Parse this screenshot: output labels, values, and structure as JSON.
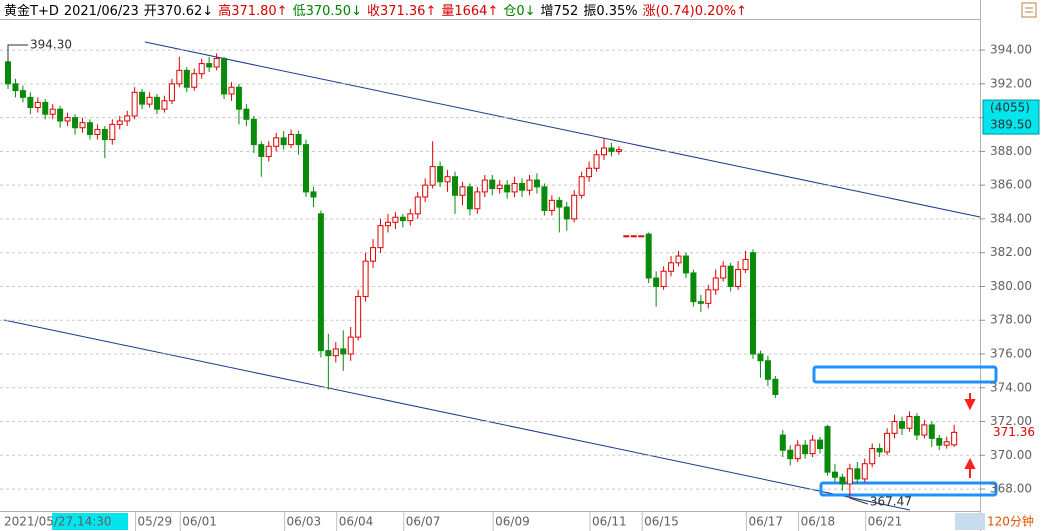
{
  "chart_data": {
    "type": "candlestick",
    "header": [
      {
        "text": "黄金T+D",
        "color": "#000000"
      },
      {
        "text": "2021/06/23",
        "color": "#000000"
      },
      {
        "text": "开370.62↓",
        "color": "#000000"
      },
      {
        "text": "高371.80↑",
        "color": "#d40000"
      },
      {
        "text": "低370.50↓",
        "color": "#008000"
      },
      {
        "text": "收371.36↑",
        "color": "#d40000"
      },
      {
        "text": "量1664↑",
        "color": "#d40000"
      },
      {
        "text": "仓0↓",
        "color": "#008000"
      },
      {
        "text": "增752",
        "color": "#000000"
      },
      {
        "text": "振0.35%",
        "color": "#000000"
      },
      {
        "text": "涨(0.74)0.20%↑",
        "color": "#d40000"
      }
    ],
    "cursor_date": "2021/05/27,14:30",
    "period": "120分钟",
    "cursor": {
      "volume_label": "(4055)",
      "price": {
        "value": 389.5,
        "label": "389.50"
      }
    },
    "last_price": {
      "value": 371.36,
      "label": "371.36"
    },
    "annotations": [
      {
        "value": 394.3,
        "label": "394.30"
      },
      {
        "value": 367.47,
        "label": "367.47"
      }
    ],
    "up_color": "#e00000",
    "down_color": "#0a8a0a",
    "grid": true,
    "ylim": [
      366.76,
      395.9
    ],
    "yticks": [
      {
        "value": 368,
        "label": "368.00"
      },
      {
        "value": 370,
        "label": "370.00"
      },
      {
        "value": 372,
        "label": "372.00"
      },
      {
        "value": 374,
        "label": "374.00"
      },
      {
        "value": 376,
        "label": "376.00"
      },
      {
        "value": 378,
        "label": "378.00"
      },
      {
        "value": 380,
        "label": "380.00"
      },
      {
        "value": 382,
        "label": "382.00"
      },
      {
        "value": 384,
        "label": "384.00"
      },
      {
        "value": 386,
        "label": "386.00"
      },
      {
        "value": 388,
        "label": "388.00"
      },
      {
        "value": 390,
        "label": "390.00"
      },
      {
        "value": 392,
        "label": "392.00"
      },
      {
        "value": 394,
        "label": "394.00"
      }
    ],
    "categories": [
      null,
      null,
      null,
      null,
      null,
      null,
      null,
      null,
      null,
      null,
      null,
      null,
      null,
      null,
      null,
      null,
      null,
      null,
      null,
      "05/29",
      null,
      null,
      null,
      null,
      null,
      "06/01",
      null,
      null,
      null,
      null,
      null,
      null,
      null,
      null,
      null,
      null,
      null,
      null,
      null,
      "06/03",
      null,
      null,
      null,
      null,
      null,
      null,
      "06/04",
      null,
      null,
      null,
      null,
      null,
      null,
      null,
      null,
      "06/07",
      null,
      null,
      null,
      null,
      null,
      null,
      null,
      null,
      null,
      null,
      null,
      "06/09",
      null,
      null,
      null,
      null,
      null,
      null,
      null,
      null,
      null,
      null,
      null,
      null,
      "06/11",
      null,
      null,
      null,
      null,
      null,
      null,
      "06/15",
      null,
      null,
      null,
      null,
      null,
      null,
      null,
      null,
      null,
      null,
      null,
      null,
      null,
      "06/17",
      null,
      null,
      null,
      null,
      null,
      null,
      "06/18",
      null,
      null,
      null,
      null,
      null,
      null,
      null,
      null,
      "06/21",
      null,
      null,
      null,
      null,
      null,
      null,
      null,
      null,
      null,
      null
    ],
    "open": [
      393.3,
      392.0,
      391.6,
      391.2,
      390.6,
      390.9,
      390.2,
      390.5,
      389.8,
      390.0,
      389.4,
      389.7,
      389.0,
      389.3,
      388.7,
      389.6,
      389.8,
      390.1,
      391.5,
      390.8,
      391.2,
      390.5,
      391.0,
      392.0,
      392.8,
      391.8,
      392.6,
      393.2,
      393.0,
      393.5,
      391.4,
      391.8,
      390.5,
      389.9,
      388.4,
      387.7,
      388.3,
      388.8,
      388.4,
      389.0,
      388.4,
      385.6,
      384.3,
      376.2,
      375.9,
      376.3,
      376.0,
      377.0,
      379.4,
      381.5,
      382.3,
      383.6,
      383.8,
      384.1,
      383.9,
      384.3,
      385.3,
      386.0,
      387.1,
      386.2,
      386.5,
      385.4,
      385.9,
      384.6,
      385.6,
      386.3,
      385.8,
      386.0,
      385.6,
      386.1,
      385.7,
      386.3,
      385.9,
      384.5,
      385.1,
      384.7,
      384.0,
      385.4,
      386.5,
      387.0,
      387.8,
      388.2,
      388.0,
      383.0,
      383.0,
      383.0,
      383.1,
      380.5,
      380.0,
      380.9,
      381.4,
      381.8,
      380.8,
      379.1,
      379.0,
      379.8,
      380.5,
      381.2,
      380.0,
      381.0,
      382.0,
      376.0,
      375.6,
      374.5,
      371.2,
      370.3,
      369.8,
      370.6,
      370.1,
      370.9,
      371.7,
      369.0,
      368.7,
      368.3,
      369.2,
      368.6,
      369.5,
      370.4,
      370.2,
      371.3,
      372.0,
      371.6,
      372.3,
      371.2,
      371.8,
      371.0,
      370.6,
      370.62
    ],
    "high": [
      394.3,
      392.3,
      391.9,
      391.5,
      391.2,
      391.1,
      390.8,
      390.7,
      390.3,
      390.2,
      390.0,
      389.9,
      389.6,
      389.5,
      389.9,
      390.1,
      390.4,
      391.8,
      391.7,
      391.5,
      391.4,
      391.3,
      392.3,
      393.6,
      393.0,
      392.9,
      393.5,
      393.6,
      393.8,
      393.6,
      392.1,
      392.0,
      390.8,
      390.1,
      388.6,
      388.6,
      389.1,
      389.2,
      389.3,
      389.2,
      388.7,
      385.9,
      384.5,
      377.2,
      376.7,
      377.4,
      377.6,
      379.8,
      382.0,
      382.8,
      384.0,
      384.3,
      384.4,
      384.3,
      384.6,
      385.6,
      386.4,
      388.6,
      387.4,
      386.9,
      386.8,
      386.2,
      386.1,
      385.9,
      386.6,
      386.6,
      386.3,
      386.3,
      386.5,
      386.4,
      386.6,
      386.7,
      386.1,
      385.4,
      385.3,
      385.0,
      385.7,
      386.8,
      387.4,
      388.1,
      388.8,
      388.5,
      388.3,
      383.0,
      383.0,
      383.0,
      383.2,
      380.9,
      381.2,
      381.8,
      382.1,
      382.0,
      381.0,
      379.5,
      380.1,
      381.0,
      381.5,
      381.4,
      381.5,
      382.1,
      382.2,
      376.2,
      375.9,
      374.7,
      371.5,
      370.6,
      370.9,
      370.9,
      371.2,
      371.1,
      371.8,
      369.5,
      368.9,
      369.5,
      369.6,
      369.8,
      370.7,
      370.7,
      371.6,
      372.4,
      372.3,
      372.6,
      372.5,
      372.1,
      372.0,
      371.2,
      371.1,
      371.8
    ],
    "low": [
      391.7,
      391.2,
      390.9,
      390.2,
      390.3,
      389.9,
      389.9,
      389.4,
      389.5,
      389.0,
      389.1,
      388.7,
      388.7,
      387.6,
      388.4,
      389.3,
      389.5,
      389.9,
      390.5,
      390.6,
      390.2,
      390.3,
      390.8,
      391.8,
      391.5,
      391.6,
      392.3,
      392.7,
      392.8,
      391.1,
      391.0,
      389.6,
      389.5,
      387.9,
      386.5,
      387.4,
      388.0,
      388.1,
      388.2,
      387.8,
      385.3,
      384.7,
      375.8,
      373.9,
      375.5,
      375.0,
      375.6,
      376.8,
      379.1,
      381.1,
      382.0,
      383.2,
      383.4,
      383.5,
      383.6,
      384.0,
      385.0,
      385.8,
      385.9,
      385.6,
      384.3,
      384.8,
      384.2,
      384.3,
      385.3,
      385.4,
      385.5,
      385.2,
      385.3,
      385.3,
      385.4,
      385.5,
      384.2,
      384.2,
      383.2,
      383.3,
      383.8,
      385.2,
      386.2,
      386.8,
      387.5,
      387.7,
      387.8,
      383.0,
      383.0,
      383.0,
      380.2,
      378.8,
      379.8,
      380.6,
      381.2,
      380.5,
      378.8,
      378.5,
      378.7,
      379.5,
      380.3,
      379.7,
      379.8,
      380.8,
      375.7,
      374.6,
      374.1,
      373.4,
      369.9,
      369.4,
      369.6,
      369.8,
      369.9,
      370.1,
      368.8,
      368.4,
      367.9,
      367.47,
      368.3,
      368.4,
      369.3,
      369.9,
      370.0,
      371.0,
      371.2,
      371.4,
      370.9,
      371.0,
      370.5,
      370.3,
      370.4,
      370.5
    ],
    "close": [
      392.0,
      391.6,
      391.2,
      390.6,
      390.9,
      390.2,
      390.5,
      389.8,
      390.0,
      389.4,
      389.7,
      389.0,
      389.3,
      388.7,
      389.6,
      389.8,
      390.1,
      391.5,
      390.8,
      391.2,
      390.5,
      391.0,
      392.0,
      392.8,
      391.8,
      392.6,
      393.2,
      393.0,
      393.5,
      391.4,
      391.8,
      390.5,
      389.9,
      388.4,
      387.7,
      388.3,
      388.8,
      388.4,
      389.0,
      388.4,
      385.6,
      385.3,
      376.2,
      375.9,
      376.3,
      376.0,
      377.0,
      379.4,
      381.5,
      382.3,
      383.6,
      383.8,
      384.1,
      383.9,
      384.3,
      385.3,
      386.0,
      387.1,
      386.2,
      386.5,
      385.4,
      385.9,
      384.6,
      385.6,
      386.3,
      385.8,
      386.0,
      385.6,
      386.1,
      385.7,
      386.3,
      385.9,
      384.5,
      385.1,
      384.7,
      384.0,
      385.4,
      386.5,
      387.0,
      387.8,
      388.2,
      388.0,
      388.1,
      383.0,
      383.0,
      383.0,
      380.5,
      380.0,
      380.9,
      381.4,
      381.8,
      380.8,
      379.1,
      379.0,
      379.8,
      380.5,
      381.2,
      380.0,
      381.0,
      381.6,
      376.0,
      375.6,
      374.5,
      373.6,
      370.3,
      369.8,
      370.6,
      370.1,
      370.9,
      370.4,
      369.0,
      368.7,
      368.3,
      369.2,
      368.6,
      369.5,
      370.4,
      370.2,
      371.3,
      372.0,
      371.6,
      372.3,
      371.2,
      371.8,
      371.0,
      370.6,
      370.8,
      371.36
    ]
  }
}
